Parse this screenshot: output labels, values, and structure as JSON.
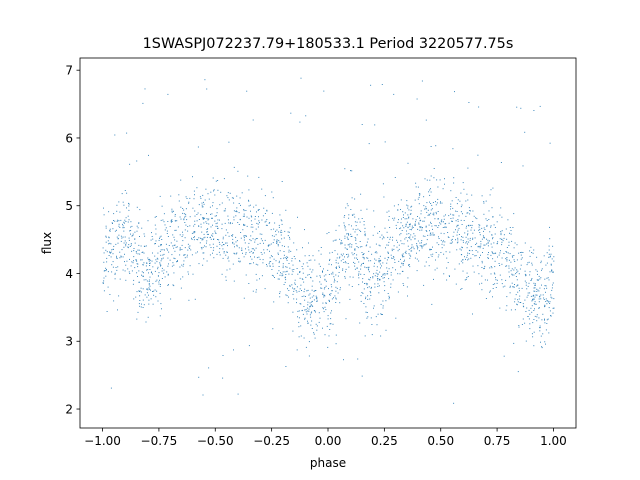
{
  "chart_data": {
    "type": "scatter",
    "title": "1SWASPJ072237.79+180533.1 Period 3220577.75s",
    "xlabel": "phase",
    "ylabel": "flux",
    "xlim": [
      -1.1,
      1.1
    ],
    "ylim": [
      1.72,
      7.18
    ],
    "x_ticks": [
      -1.0,
      -0.75,
      -0.5,
      -0.25,
      0.0,
      0.25,
      0.5,
      0.75,
      1.0
    ],
    "x_tick_labels": [
      "−1.00",
      "−0.75",
      "−0.50",
      "−0.25",
      "0.00",
      "0.25",
      "0.50",
      "0.75",
      "1.00"
    ],
    "y_ticks": [
      2,
      3,
      4,
      5,
      6,
      7
    ],
    "y_tick_labels": [
      "2",
      "3",
      "4",
      "5",
      "6",
      "7"
    ],
    "grid": false,
    "legend": "none",
    "marker_color": "#1f77b4",
    "series": [
      {
        "profile": [
          {
            "phase": -1.0,
            "flux": 4.25
          },
          {
            "phase": -0.95,
            "flux": 4.35
          },
          {
            "phase": -0.9,
            "flux": 4.65
          },
          {
            "phase": -0.85,
            "flux": 4.1
          },
          {
            "phase": -0.8,
            "flux": 3.95
          },
          {
            "phase": -0.75,
            "flux": 4.1
          },
          {
            "phase": -0.7,
            "flux": 4.45
          },
          {
            "phase": -0.65,
            "flux": 4.55
          },
          {
            "phase": -0.6,
            "flux": 4.7
          },
          {
            "phase": -0.55,
            "flux": 4.7
          },
          {
            "phase": -0.5,
            "flux": 4.7
          },
          {
            "phase": -0.45,
            "flux": 4.65
          },
          {
            "phase": -0.4,
            "flux": 4.6
          },
          {
            "phase": -0.35,
            "flux": 4.5
          },
          {
            "phase": -0.3,
            "flux": 4.45
          },
          {
            "phase": -0.25,
            "flux": 4.4
          },
          {
            "phase": -0.2,
            "flux": 4.2
          },
          {
            "phase": -0.15,
            "flux": 3.9
          },
          {
            "phase": -0.1,
            "flux": 3.7
          },
          {
            "phase": -0.05,
            "flux": 3.55
          },
          {
            "phase": 0.0,
            "flux": 3.75
          },
          {
            "phase": 0.05,
            "flux": 4.2
          },
          {
            "phase": 0.1,
            "flux": 4.55
          },
          {
            "phase": 0.15,
            "flux": 4.1
          },
          {
            "phase": 0.2,
            "flux": 3.95
          },
          {
            "phase": 0.25,
            "flux": 4.1
          },
          {
            "phase": 0.3,
            "flux": 4.45
          },
          {
            "phase": 0.35,
            "flux": 4.55
          },
          {
            "phase": 0.4,
            "flux": 4.7
          },
          {
            "phase": 0.45,
            "flux": 4.7
          },
          {
            "phase": 0.5,
            "flux": 4.7
          },
          {
            "phase": 0.55,
            "flux": 4.65
          },
          {
            "phase": 0.6,
            "flux": 4.6
          },
          {
            "phase": 0.65,
            "flux": 4.5
          },
          {
            "phase": 0.7,
            "flux": 4.45
          },
          {
            "phase": 0.75,
            "flux": 4.4
          },
          {
            "phase": 0.8,
            "flux": 4.2
          },
          {
            "phase": 0.85,
            "flux": 3.9
          },
          {
            "phase": 0.9,
            "flux": 3.7
          },
          {
            "phase": 0.95,
            "flux": 3.55
          },
          {
            "phase": 1.0,
            "flux": 4.1
          }
        ],
        "flux_spread": 0.35,
        "outlier_flux_range": [
          1.9,
          6.9
        ]
      }
    ]
  }
}
